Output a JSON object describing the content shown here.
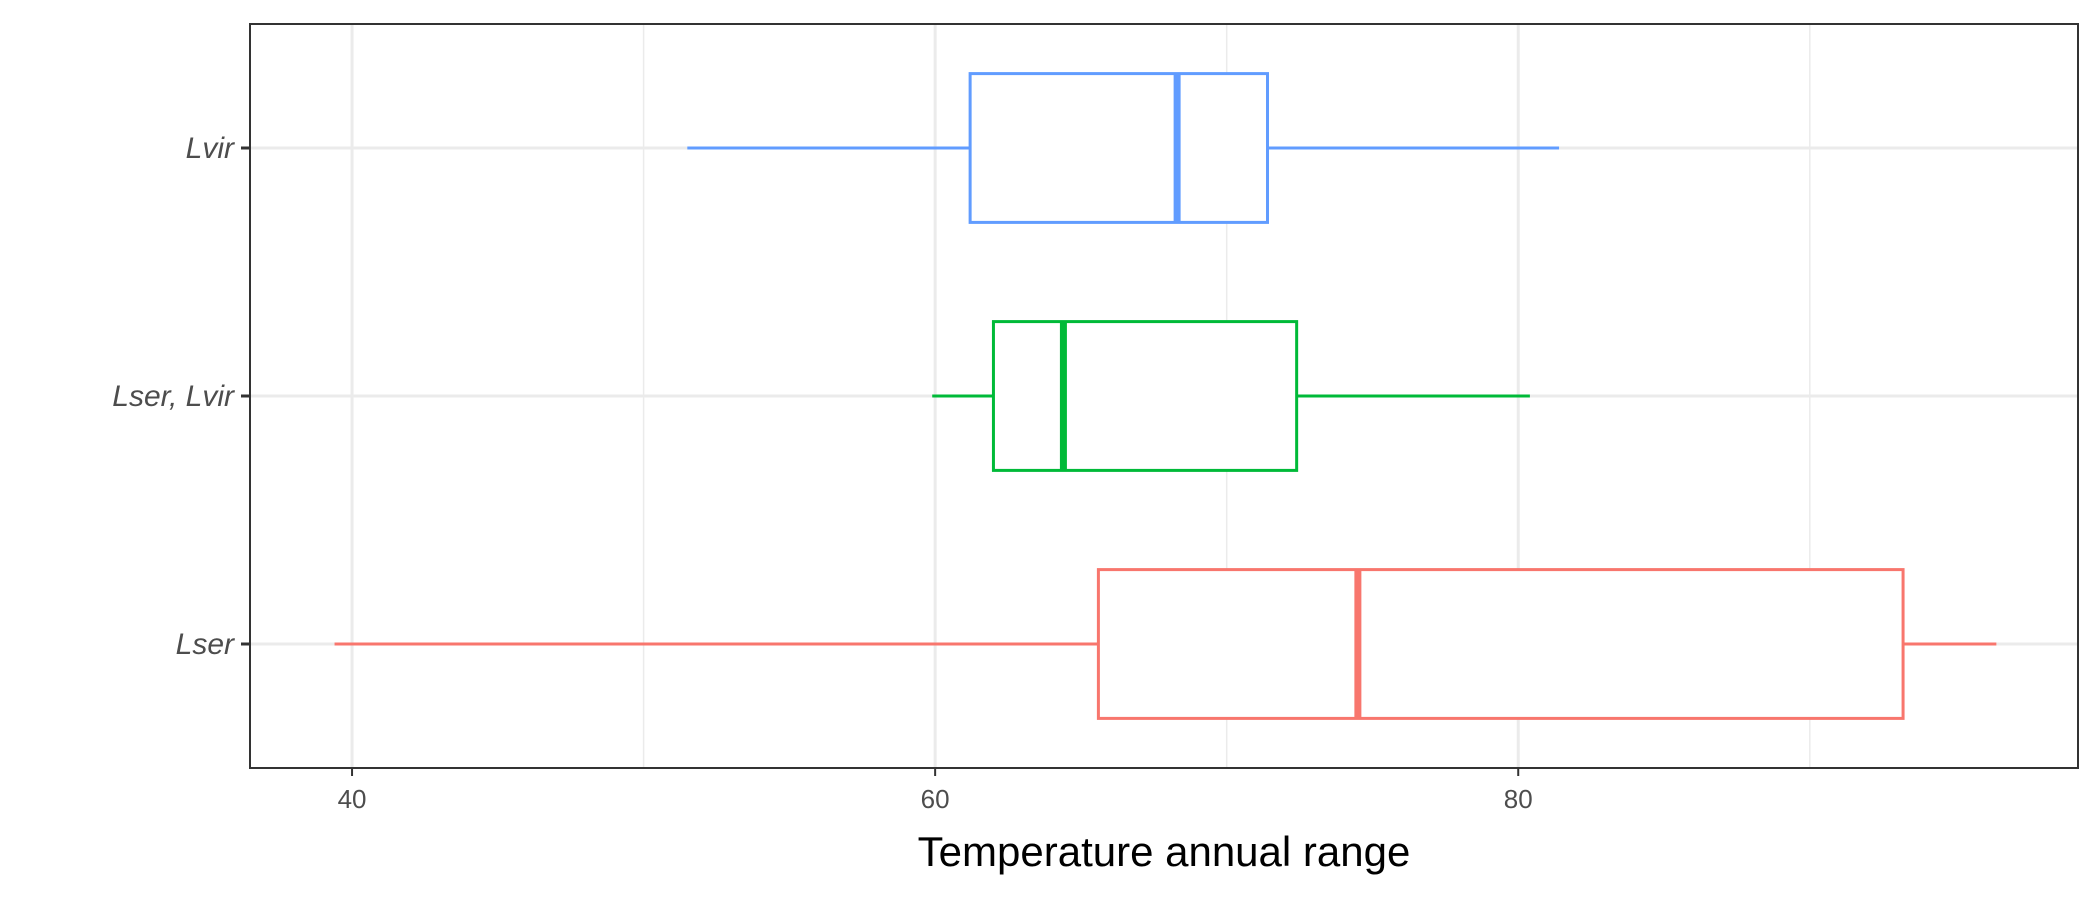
{
  "chart_data": {
    "type": "boxplot",
    "orientation": "horizontal",
    "xlabel": "Temperature annual range",
    "ylabel": "",
    "xlim": [
      36.5,
      99.2
    ],
    "x_ticks": [
      "40",
      "60",
      "80"
    ],
    "x_tick_values": [
      40,
      60,
      80
    ],
    "grid": true,
    "categories": [
      "Lvir",
      "Lser, Lvir",
      "Lser"
    ],
    "series": [
      {
        "category": "Lvir",
        "color": "#619CFF",
        "whisker_low": 51.5,
        "q1": 61.2,
        "median": 68.3,
        "q3": 71.4,
        "whisker_high": 81.4
      },
      {
        "category": "Lser, Lvir",
        "color": "#00BA38",
        "whisker_low": 59.9,
        "q1": 62.0,
        "median": 64.4,
        "q3": 72.4,
        "whisker_high": 80.4
      },
      {
        "category": "Lser",
        "color": "#F8766D",
        "whisker_low": 39.4,
        "q1": 65.6,
        "median": 74.5,
        "q3": 93.2,
        "whisker_high": 96.4
      }
    ]
  }
}
